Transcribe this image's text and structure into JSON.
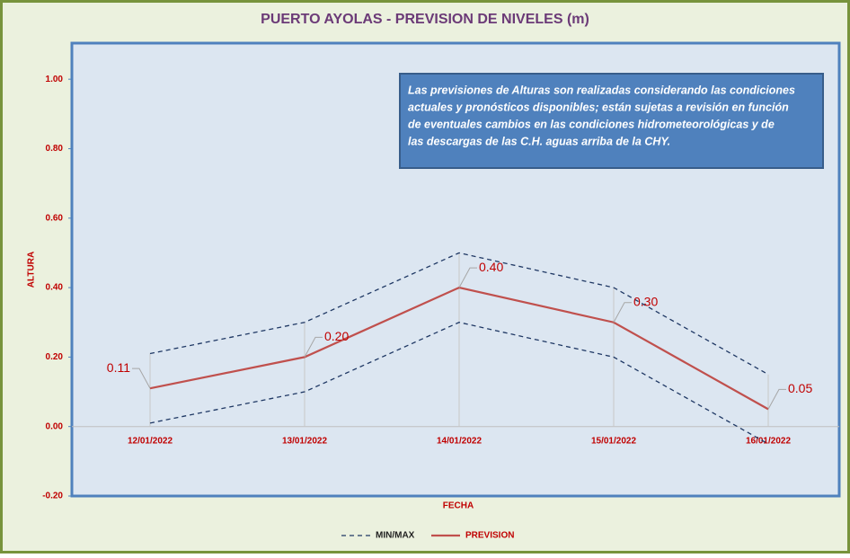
{
  "chart_data": {
    "type": "line",
    "title": "PUERTO AYOLAS - PREVISION DE NIVELES (m)",
    "x_label": "FECHA",
    "y_label": "ALTURA",
    "categories": [
      "12/01/2022",
      "13/01/2022",
      "14/01/2022",
      "15/01/2022",
      "16/01/2022"
    ],
    "series": [
      {
        "name": "MIN/MAX",
        "color": "#1f3864",
        "dashed": true,
        "upper": [
          0.21,
          0.3,
          0.5,
          0.4,
          0.15
        ],
        "lower": [
          0.01,
          0.1,
          0.3,
          0.2,
          -0.05
        ]
      },
      {
        "name": "PREVISION",
        "color": "#c0504d",
        "values": [
          0.11,
          0.2,
          0.4,
          0.3,
          0.05
        ],
        "value_labels": [
          "0.11",
          "0.20",
          "0.40",
          "0.30",
          "0.05"
        ]
      }
    ],
    "ylim": [
      -0.2,
      1.1
    ],
    "yticks": [
      {
        "value": -0.2,
        "label": "-0.20"
      },
      {
        "value": 0,
        "label": "0.00"
      },
      {
        "value": 0.2,
        "label": "0.20"
      },
      {
        "value": 0.4,
        "label": "0.40"
      },
      {
        "value": 0.6,
        "label": "0.60"
      },
      {
        "value": 0.8,
        "label": "0.80"
      },
      {
        "value": 1,
        "label": "1.00"
      }
    ],
    "note_lines": [
      "Las previsiones de Alturas son realizadas considerando las condiciones",
      "actuales y pronósticos disponibles;  están sujetas a revisión en función",
      "de eventuales cambios en las condiciones hidrometeorológicas y de",
      "las descargas de las C.H. aguas arriba de la CHY."
    ]
  }
}
